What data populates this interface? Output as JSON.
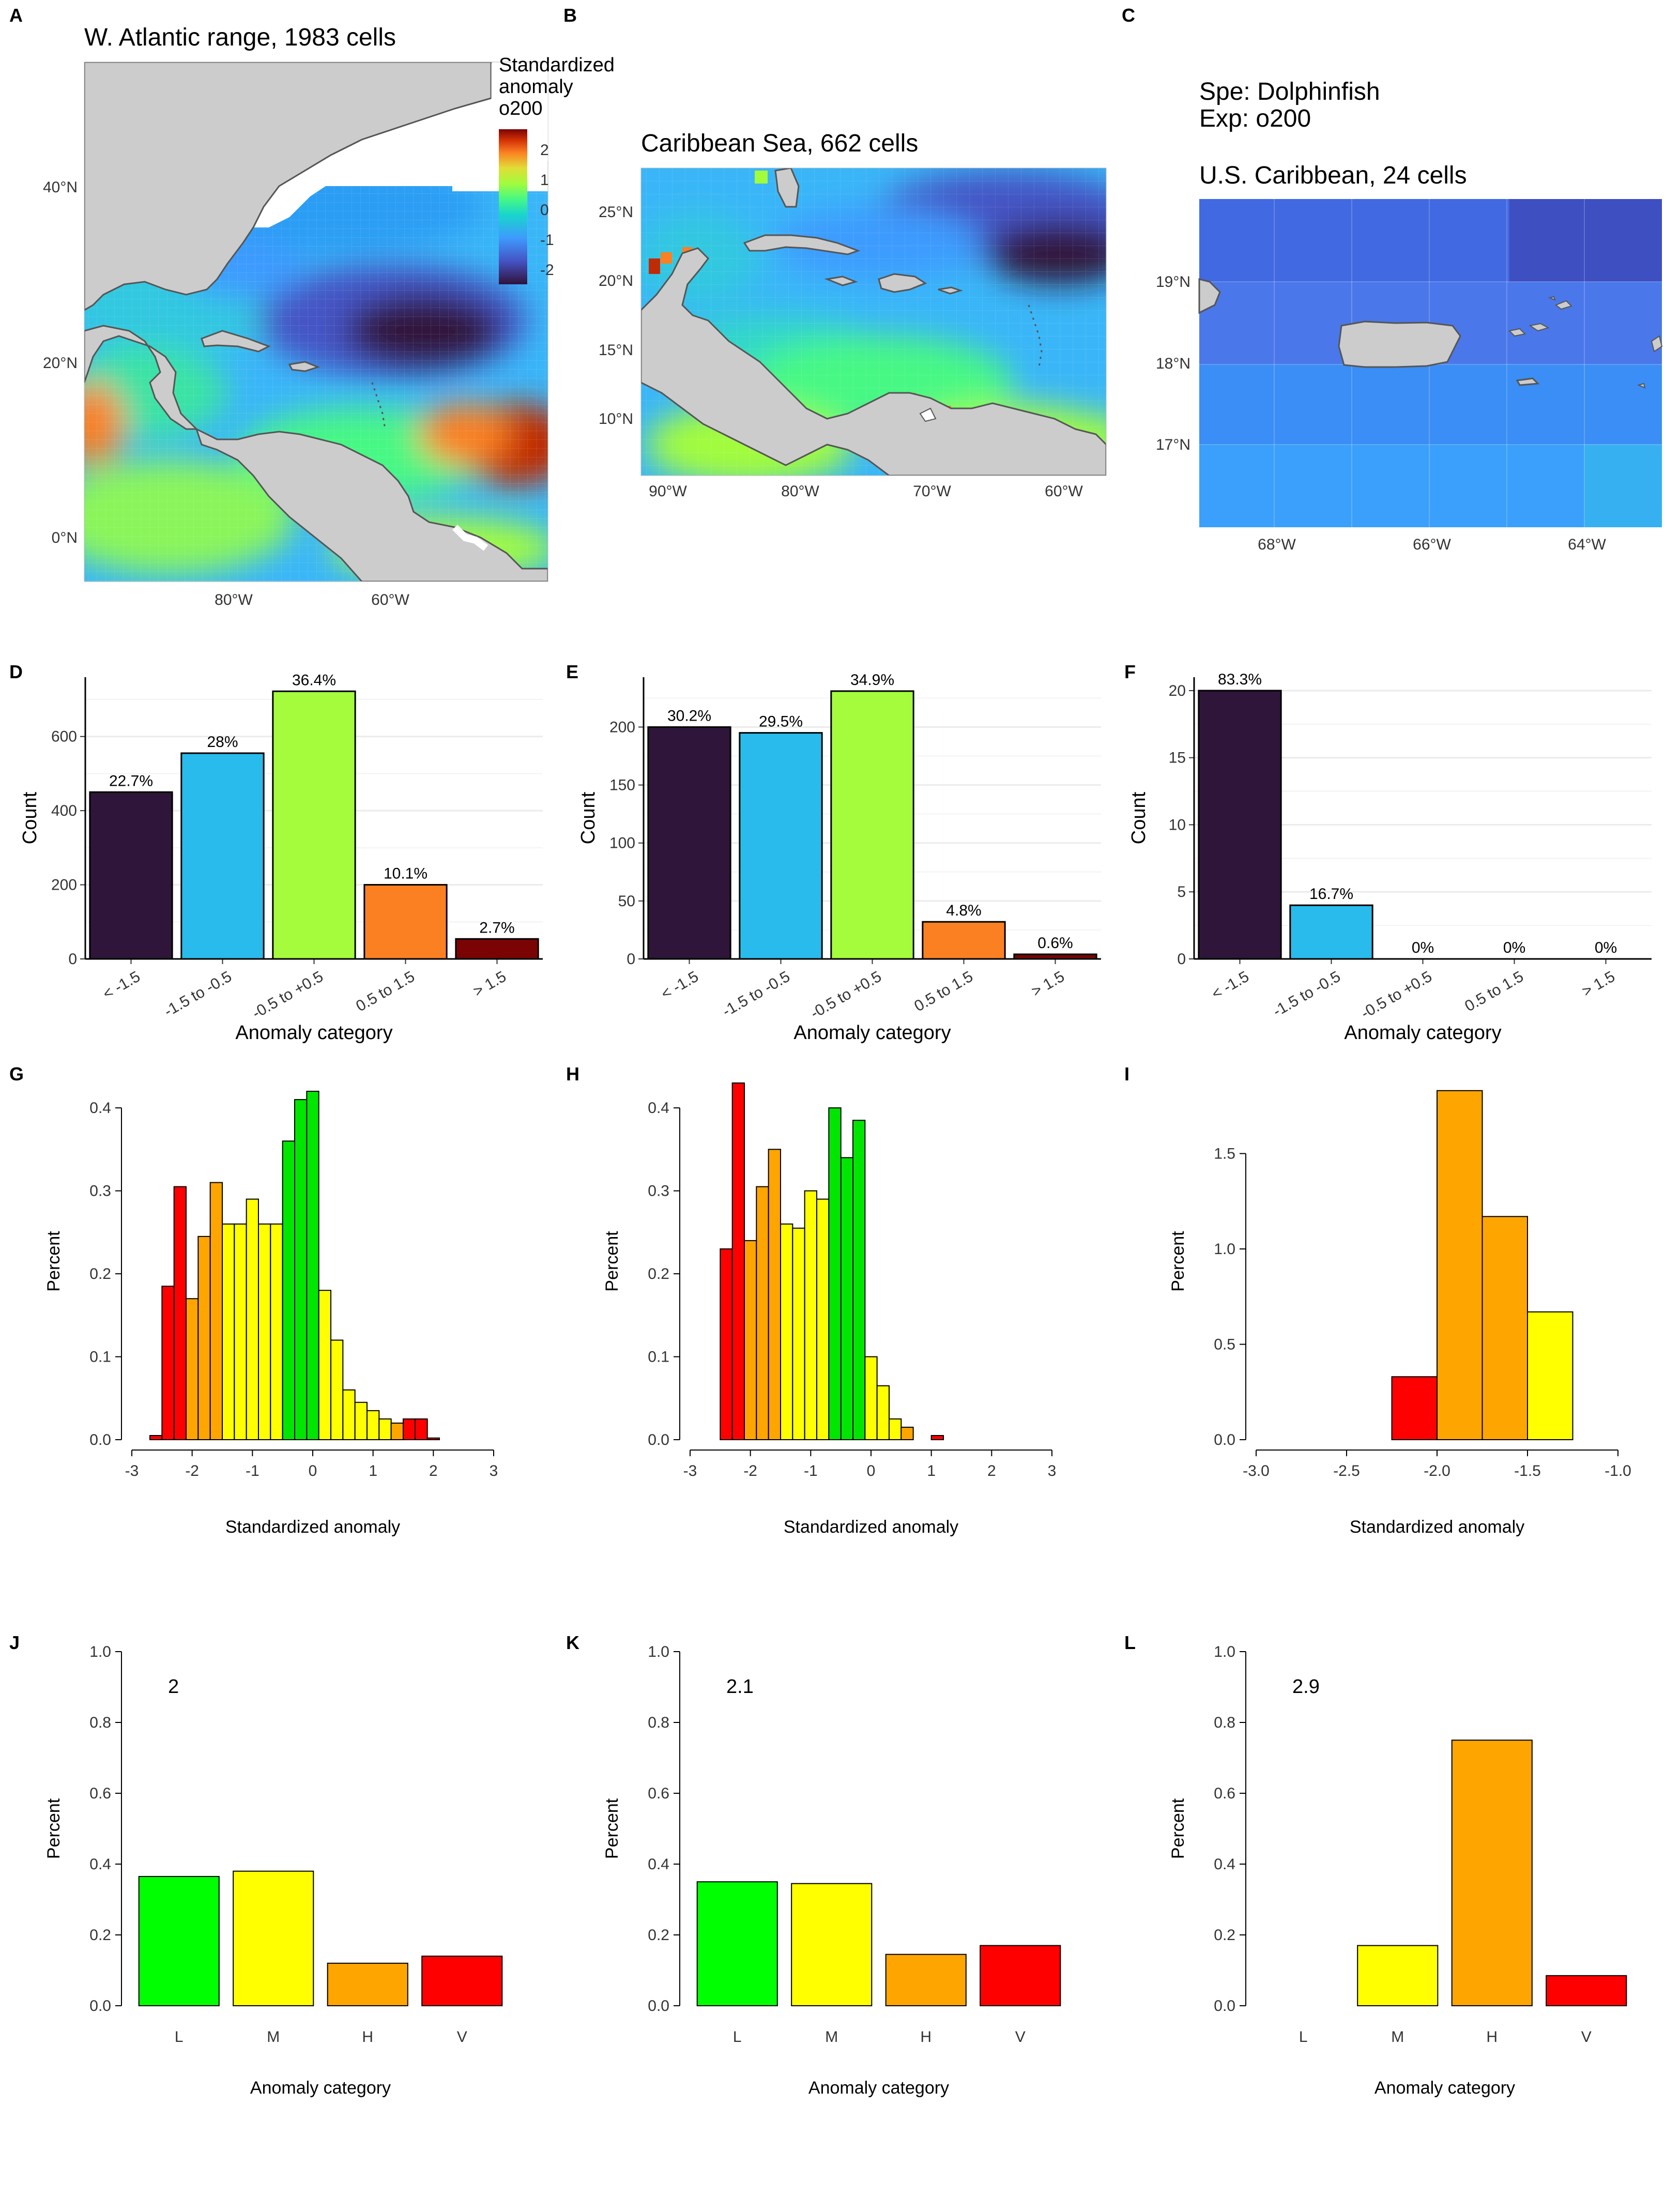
{
  "colors": {
    "land": "#cccccc",
    "coast": "#555555",
    "cat_bars": [
      "#2e1539",
      "#29bbec",
      "#a4fc3c",
      "#fb8022",
      "#7a0403"
    ],
    "hist_red": "#ff0000",
    "hist_orange": "#ffa500",
    "hist_yellow": "#ffff00",
    "hist_green": "#00e600"
  },
  "maps": {
    "A": {
      "panel_label": "A",
      "title": "W. Atlantic range, 1983 cells",
      "legend_title": [
        "Standardized",
        "anomaly",
        "o200"
      ],
      "legend_ticks": [
        "2",
        "1",
        "0",
        "-1",
        "-2"
      ],
      "y_ticks": [
        "40°N",
        "20°N",
        "0°N"
      ],
      "x_ticks": [
        "80°W",
        "60°W"
      ]
    },
    "B": {
      "panel_label": "B",
      "title": "Caribbean Sea, 662 cells",
      "y_ticks": [
        "25°N",
        "20°N",
        "15°N",
        "10°N"
      ],
      "x_ticks": [
        "90°W",
        "80°W",
        "70°W",
        "60°W"
      ]
    },
    "C": {
      "panel_label": "C",
      "species": "Spe: Dolphinfish",
      "exposure": "Exp: o200",
      "title": "U.S. Caribbean, 24 cells",
      "y_ticks": [
        "19°N",
        "18°N",
        "17°N"
      ],
      "x_ticks": [
        "68°W",
        "66°W",
        "64°W"
      ]
    }
  },
  "chart_data": [
    {
      "panel": "D",
      "type": "bar",
      "categories": [
        "< -1.5",
        "-1.5 to -0.5",
        "-0.5 to +0.5",
        "0.5 to 1.5",
        "> 1.5"
      ],
      "values": [
        450,
        555,
        722,
        200,
        54
      ],
      "labels": [
        "22.7%",
        "28%",
        "36.4%",
        "10.1%",
        "2.7%"
      ],
      "xlabel": "Anomaly category",
      "ylabel": "Count",
      "ylim": [
        0,
        760
      ],
      "yticks": [
        0,
        200,
        400,
        600
      ],
      "grid": true
    },
    {
      "panel": "E",
      "type": "bar",
      "categories": [
        "< -1.5",
        "-1.5 to -0.5",
        "-0.5 to +0.5",
        "0.5 to 1.5",
        "> 1.5"
      ],
      "values": [
        200,
        195,
        231,
        32,
        4
      ],
      "labels": [
        "30.2%",
        "29.5%",
        "34.9%",
        "4.8%",
        "0.6%"
      ],
      "xlabel": "Anomaly category",
      "ylabel": "Count",
      "ylim": [
        0,
        243
      ],
      "yticks": [
        0,
        50,
        100,
        150,
        200
      ],
      "grid": true
    },
    {
      "panel": "F",
      "type": "bar",
      "categories": [
        "< -1.5",
        "-1.5 to -0.5",
        "-0.5 to +0.5",
        "0.5 to 1.5",
        "> 1.5"
      ],
      "values": [
        20,
        4,
        0,
        0,
        0
      ],
      "labels": [
        "83.3%",
        "16.7%",
        "0%",
        "0%",
        "0%"
      ],
      "xlabel": "Anomaly category",
      "ylabel": "Count",
      "ylim": [
        0,
        21
      ],
      "yticks": [
        0,
        5,
        10,
        15,
        20
      ],
      "grid": true
    },
    {
      "panel": "G",
      "type": "bar",
      "subtype": "histogram",
      "xlabel": "Standardized anomaly",
      "ylabel": "Percent",
      "xlim": [
        -3,
        3
      ],
      "ylim": [
        0,
        0.43
      ],
      "xticks": [
        -3,
        -2,
        -1,
        0,
        1,
        2,
        3
      ],
      "yticks": [
        0.0,
        0.1,
        0.2,
        0.3,
        0.4
      ],
      "bins": [
        {
          "x0": -2.7,
          "x1": -2.5,
          "y": 0.005,
          "c": "hist_red"
        },
        {
          "x0": -2.5,
          "x1": -2.3,
          "y": 0.185,
          "c": "hist_red"
        },
        {
          "x0": -2.3,
          "x1": -2.1,
          "y": 0.305,
          "c": "hist_red"
        },
        {
          "x0": -2.1,
          "x1": -1.9,
          "y": 0.17,
          "c": "hist_orange"
        },
        {
          "x0": -1.9,
          "x1": -1.7,
          "y": 0.245,
          "c": "hist_orange"
        },
        {
          "x0": -1.7,
          "x1": -1.5,
          "y": 0.31,
          "c": "hist_orange"
        },
        {
          "x0": -1.5,
          "x1": -1.3,
          "y": 0.26,
          "c": "hist_yellow"
        },
        {
          "x0": -1.3,
          "x1": -1.1,
          "y": 0.26,
          "c": "hist_yellow"
        },
        {
          "x0": -1.1,
          "x1": -0.9,
          "y": 0.29,
          "c": "hist_yellow"
        },
        {
          "x0": -0.9,
          "x1": -0.7,
          "y": 0.26,
          "c": "hist_yellow"
        },
        {
          "x0": -0.7,
          "x1": -0.5,
          "y": 0.26,
          "c": "hist_yellow"
        },
        {
          "x0": -0.5,
          "x1": -0.3,
          "y": 0.36,
          "c": "hist_green"
        },
        {
          "x0": -0.3,
          "x1": -0.1,
          "y": 0.41,
          "c": "hist_green"
        },
        {
          "x0": -0.1,
          "x1": 0.1,
          "y": 0.42,
          "c": "hist_green"
        },
        {
          "x0": 0.1,
          "x1": 0.3,
          "y": 0.18,
          "c": "hist_yellow"
        },
        {
          "x0": 0.3,
          "x1": 0.5,
          "y": 0.12,
          "c": "hist_yellow"
        },
        {
          "x0": 0.5,
          "x1": 0.7,
          "y": 0.06,
          "c": "hist_yellow"
        },
        {
          "x0": 0.7,
          "x1": 0.9,
          "y": 0.045,
          "c": "hist_yellow"
        },
        {
          "x0": 0.9,
          "x1": 1.1,
          "y": 0.035,
          "c": "hist_yellow"
        },
        {
          "x0": 1.1,
          "x1": 1.3,
          "y": 0.025,
          "c": "hist_yellow"
        },
        {
          "x0": 1.3,
          "x1": 1.5,
          "y": 0.02,
          "c": "hist_orange"
        },
        {
          "x0": 1.5,
          "x1": 1.7,
          "y": 0.025,
          "c": "hist_red"
        },
        {
          "x0": 1.7,
          "x1": 1.9,
          "y": 0.025,
          "c": "hist_red"
        },
        {
          "x0": 1.9,
          "x1": 2.1,
          "y": 0.002,
          "c": "hist_red"
        }
      ]
    },
    {
      "panel": "H",
      "type": "bar",
      "subtype": "histogram",
      "xlabel": "Standardized anomaly",
      "ylabel": "Percent",
      "xlim": [
        -3,
        3
      ],
      "ylim": [
        0,
        0.43
      ],
      "xticks": [
        -3,
        -2,
        -1,
        0,
        1,
        2,
        3
      ],
      "yticks": [
        0.0,
        0.1,
        0.2,
        0.3,
        0.4
      ],
      "bins": [
        {
          "x0": -2.5,
          "x1": -2.3,
          "y": 0.23,
          "c": "hist_red"
        },
        {
          "x0": -2.3,
          "x1": -2.1,
          "y": 0.43,
          "c": "hist_red"
        },
        {
          "x0": -2.1,
          "x1": -1.9,
          "y": 0.24,
          "c": "hist_orange"
        },
        {
          "x0": -1.9,
          "x1": -1.7,
          "y": 0.305,
          "c": "hist_orange"
        },
        {
          "x0": -1.7,
          "x1": -1.5,
          "y": 0.35,
          "c": "hist_orange"
        },
        {
          "x0": -1.5,
          "x1": -1.3,
          "y": 0.26,
          "c": "hist_yellow"
        },
        {
          "x0": -1.3,
          "x1": -1.1,
          "y": 0.255,
          "c": "hist_yellow"
        },
        {
          "x0": -1.1,
          "x1": -0.9,
          "y": 0.3,
          "c": "hist_yellow"
        },
        {
          "x0": -0.9,
          "x1": -0.7,
          "y": 0.29,
          "c": "hist_yellow"
        },
        {
          "x0": -0.7,
          "x1": -0.5,
          "y": 0.4,
          "c": "hist_green"
        },
        {
          "x0": -0.5,
          "x1": -0.3,
          "y": 0.34,
          "c": "hist_green"
        },
        {
          "x0": -0.3,
          "x1": -0.1,
          "y": 0.385,
          "c": "hist_green"
        },
        {
          "x0": -0.1,
          "x1": 0.1,
          "y": 0.1,
          "c": "hist_yellow"
        },
        {
          "x0": 0.1,
          "x1": 0.3,
          "y": 0.065,
          "c": "hist_yellow"
        },
        {
          "x0": 0.3,
          "x1": 0.5,
          "y": 0.025,
          "c": "hist_yellow"
        },
        {
          "x0": 0.5,
          "x1": 0.7,
          "y": 0.015,
          "c": "hist_orange"
        },
        {
          "x0": 1.0,
          "x1": 1.2,
          "y": 0.005,
          "c": "hist_red"
        }
      ]
    },
    {
      "panel": "I",
      "type": "bar",
      "subtype": "histogram",
      "xlabel": "Standardized anomaly",
      "ylabel": "Percent",
      "xlim": [
        -3.0,
        -1.0
      ],
      "ylim": [
        0,
        1.87
      ],
      "xticks": [
        -3.0,
        -2.5,
        -2.0,
        -1.5,
        -1.0
      ],
      "yticks": [
        0.0,
        0.5,
        1.0,
        1.5
      ],
      "bins": [
        {
          "x0": -2.25,
          "x1": -2.0,
          "y": 0.33,
          "c": "hist_red"
        },
        {
          "x0": -2.0,
          "x1": -1.75,
          "y": 1.83,
          "c": "hist_orange"
        },
        {
          "x0": -1.75,
          "x1": -1.5,
          "y": 1.17,
          "c": "hist_orange"
        },
        {
          "x0": -1.5,
          "x1": -1.25,
          "y": 0.67,
          "c": "hist_yellow"
        }
      ]
    },
    {
      "panel": "J",
      "type": "bar",
      "categories": [
        "L",
        "M",
        "H",
        "V"
      ],
      "values": [
        0.365,
        0.38,
        0.12,
        0.14
      ],
      "annotation": "2",
      "xlabel": "Anomaly category",
      "ylabel": "Percent",
      "ylim": [
        0,
        1.0
      ],
      "yticks": [
        0.0,
        0.2,
        0.4,
        0.6,
        0.8,
        1.0
      ],
      "colors": [
        "#00ff00",
        "#ffff00",
        "#ffa500",
        "#ff0000"
      ]
    },
    {
      "panel": "K",
      "type": "bar",
      "categories": [
        "L",
        "M",
        "H",
        "V"
      ],
      "values": [
        0.35,
        0.345,
        0.145,
        0.17
      ],
      "annotation": "2.1",
      "xlabel": "Anomaly category",
      "ylabel": "Percent",
      "ylim": [
        0,
        1.0
      ],
      "yticks": [
        0.0,
        0.2,
        0.4,
        0.6,
        0.8,
        1.0
      ],
      "colors": [
        "#00ff00",
        "#ffff00",
        "#ffa500",
        "#ff0000"
      ]
    },
    {
      "panel": "L",
      "type": "bar",
      "categories": [
        "L",
        "M",
        "H",
        "V"
      ],
      "values": [
        0.0,
        0.17,
        0.75,
        0.085
      ],
      "annotation": "2.9",
      "xlabel": "Anomaly category",
      "ylabel": "Percent",
      "ylim": [
        0,
        1.0
      ],
      "yticks": [
        0.0,
        0.2,
        0.4,
        0.6,
        0.8,
        1.0
      ],
      "colors": [
        "#00ff00",
        "#ffff00",
        "#ffa500",
        "#ff0000"
      ]
    }
  ]
}
